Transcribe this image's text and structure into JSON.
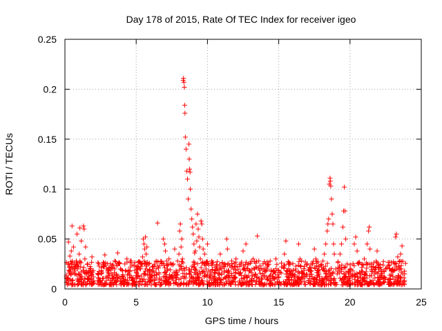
{
  "chart_data": {
    "type": "scatter",
    "title": "Day 178 of 2015, Rate Of TEC Index for receiver igeo",
    "xlabel": "GPS time / hours",
    "ylabel": "ROTI / TECUs",
    "xlim": [
      0,
      25
    ],
    "ylim": [
      0,
      0.25
    ],
    "xticks": [
      0,
      5,
      10,
      15,
      20,
      25
    ],
    "xtick_labels": [
      "0",
      "5",
      "10",
      "15",
      "20",
      "25"
    ],
    "yticks": [
      0,
      0.05,
      0.1,
      0.15,
      0.2,
      0.25
    ],
    "ytick_labels": [
      "0",
      "0.05",
      "0.1",
      "0.15",
      "0.2",
      "0.25"
    ],
    "grid": true,
    "marker": "+",
    "color": "#ff0000",
    "series": [
      {
        "name": "ROTI",
        "points": [
          [
            0.1,
            0.012
          ],
          [
            0.2,
            0.025
          ],
          [
            0.25,
            0.047
          ],
          [
            0.3,
            0.018
          ],
          [
            0.35,
            0.033
          ],
          [
            0.4,
            0.008
          ],
          [
            0.45,
            0.038
          ],
          [
            0.5,
            0.063
          ],
          [
            0.55,
            0.02
          ],
          [
            0.6,
            0.042
          ],
          [
            0.7,
            0.015
          ],
          [
            0.8,
            0.028
          ],
          [
            0.85,
            0.055
          ],
          [
            0.9,
            0.01
          ],
          [
            1.0,
            0.035
          ],
          [
            1.05,
            0.061
          ],
          [
            1.1,
            0.022
          ],
          [
            1.15,
            0.048
          ],
          [
            1.2,
            0.012
          ],
          [
            1.3,
            0.063
          ],
          [
            1.35,
            0.06
          ],
          [
            1.4,
            0.03
          ],
          [
            1.45,
            0.042
          ],
          [
            1.5,
            0.015
          ],
          [
            1.6,
            0.025
          ],
          [
            1.7,
            0.01
          ],
          [
            1.8,
            0.02
          ],
          [
            1.9,
            0.032
          ],
          [
            2.0,
            0.012
          ],
          [
            2.3,
            0.015
          ],
          [
            2.5,
            0.008
          ],
          [
            2.7,
            0.022
          ],
          [
            2.8,
            0.034
          ],
          [
            2.9,
            0.012
          ],
          [
            3.0,
            0.018
          ],
          [
            3.2,
            0.025
          ],
          [
            3.3,
            0.01
          ],
          [
            3.5,
            0.028
          ],
          [
            3.6,
            0.015
          ],
          [
            3.7,
            0.036
          ],
          [
            3.8,
            0.012
          ],
          [
            3.9,
            0.02
          ],
          [
            4.1,
            0.01
          ],
          [
            4.2,
            0.025
          ],
          [
            4.35,
            0.03
          ],
          [
            4.5,
            0.015
          ],
          [
            4.6,
            0.028
          ],
          [
            4.8,
            0.008
          ],
          [
            5.0,
            0.022
          ],
          [
            5.1,
            0.012
          ],
          [
            5.3,
            0.02
          ],
          [
            5.45,
            0.032
          ],
          [
            5.5,
            0.05
          ],
          [
            5.55,
            0.045
          ],
          [
            5.6,
            0.04
          ],
          [
            5.65,
            0.052
          ],
          [
            5.7,
            0.035
          ],
          [
            5.75,
            0.042
          ],
          [
            5.8,
            0.018
          ],
          [
            5.9,
            0.025
          ],
          [
            6.0,
            0.012
          ],
          [
            6.2,
            0.018
          ],
          [
            6.4,
            0.028
          ],
          [
            6.5,
            0.066
          ],
          [
            6.6,
            0.015
          ],
          [
            6.8,
            0.025
          ],
          [
            6.9,
            0.05
          ],
          [
            7.0,
            0.045
          ],
          [
            7.05,
            0.038
          ],
          [
            7.2,
            0.02
          ],
          [
            7.3,
            0.03
          ],
          [
            7.4,
            0.012
          ],
          [
            7.6,
            0.025
          ],
          [
            7.7,
            0.04
          ],
          [
            7.8,
            0.018
          ],
          [
            7.9,
            0.028
          ],
          [
            8.0,
            0.035
          ],
          [
            8.05,
            0.058
          ],
          [
            8.1,
            0.065
          ],
          [
            8.15,
            0.042
          ],
          [
            8.2,
            0.05
          ],
          [
            8.25,
            0.03
          ],
          [
            8.3,
            0.209
          ],
          [
            8.32,
            0.211
          ],
          [
            8.35,
            0.207
          ],
          [
            8.38,
            0.202
          ],
          [
            8.4,
            0.184
          ],
          [
            8.42,
            0.176
          ],
          [
            8.45,
            0.152
          ],
          [
            8.5,
            0.14
          ],
          [
            8.55,
            0.118
          ],
          [
            8.6,
            0.11
          ],
          [
            8.65,
            0.09
          ],
          [
            8.7,
            0.145
          ],
          [
            8.72,
            0.13
          ],
          [
            8.75,
            0.12
          ],
          [
            8.78,
            0.117
          ],
          [
            8.8,
            0.1
          ],
          [
            8.85,
            0.08
          ],
          [
            8.9,
            0.07
          ],
          [
            8.95,
            0.062
          ],
          [
            9.0,
            0.055
          ],
          [
            9.05,
            0.045
          ],
          [
            9.1,
            0.036
          ],
          [
            9.15,
            0.038
          ],
          [
            9.2,
            0.065
          ],
          [
            9.25,
            0.048
          ],
          [
            9.3,
            0.075
          ],
          [
            9.35,
            0.06
          ],
          [
            9.4,
            0.052
          ],
          [
            9.45,
            0.042
          ],
          [
            9.5,
            0.03
          ],
          [
            9.55,
            0.068
          ],
          [
            9.6,
            0.065
          ],
          [
            9.65,
            0.05
          ],
          [
            9.7,
            0.04
          ],
          [
            9.8,
            0.035
          ],
          [
            9.9,
            0.025
          ],
          [
            10.0,
            0.045
          ],
          [
            10.1,
            0.018
          ],
          [
            10.3,
            0.028
          ],
          [
            10.5,
            0.012
          ],
          [
            10.7,
            0.02
          ],
          [
            10.9,
            0.035
          ],
          [
            11.0,
            0.015
          ],
          [
            11.2,
            0.025
          ],
          [
            11.35,
            0.05
          ],
          [
            11.4,
            0.04
          ],
          [
            11.5,
            0.018
          ],
          [
            11.7,
            0.028
          ],
          [
            11.9,
            0.012
          ],
          [
            12.0,
            0.03
          ],
          [
            12.2,
            0.015
          ],
          [
            12.35,
            0.025
          ],
          [
            12.5,
            0.038
          ],
          [
            12.6,
            0.02
          ],
          [
            12.7,
            0.045
          ],
          [
            12.8,
            0.012
          ],
          [
            12.9,
            0.025
          ],
          [
            13.0,
            0.018
          ],
          [
            13.2,
            0.03
          ],
          [
            13.4,
            0.022
          ],
          [
            13.5,
            0.053
          ],
          [
            13.6,
            0.028
          ],
          [
            13.8,
            0.012
          ],
          [
            13.9,
            0.025
          ],
          [
            14.0,
            0.018
          ],
          [
            14.2,
            0.02
          ],
          [
            14.4,
            0.028
          ],
          [
            14.6,
            0.015
          ],
          [
            14.8,
            0.03
          ],
          [
            15.0,
            0.012
          ],
          [
            15.2,
            0.022
          ],
          [
            15.4,
            0.035
          ],
          [
            15.5,
            0.048
          ],
          [
            15.6,
            0.018
          ],
          [
            15.8,
            0.025
          ],
          [
            16.0,
            0.015
          ],
          [
            16.2,
            0.02
          ],
          [
            16.4,
            0.045
          ],
          [
            16.5,
            0.03
          ],
          [
            16.6,
            0.028
          ],
          [
            16.8,
            0.015
          ],
          [
            17.0,
            0.025
          ],
          [
            17.2,
            0.018
          ],
          [
            17.4,
            0.01
          ],
          [
            17.5,
            0.04
          ],
          [
            17.6,
            0.03
          ],
          [
            17.8,
            0.015
          ],
          [
            18.0,
            0.022
          ],
          [
            18.1,
            0.028
          ],
          [
            18.2,
            0.035
          ],
          [
            18.3,
            0.045
          ],
          [
            18.4,
            0.058
          ],
          [
            18.45,
            0.065
          ],
          [
            18.5,
            0.07
          ],
          [
            18.55,
            0.105
          ],
          [
            18.6,
            0.111
          ],
          [
            18.62,
            0.108
          ],
          [
            18.65,
            0.103
          ],
          [
            18.7,
            0.09
          ],
          [
            18.75,
            0.075
          ],
          [
            18.8,
            0.065
          ],
          [
            18.85,
            0.045
          ],
          [
            18.9,
            0.035
          ],
          [
            19.0,
            0.02
          ],
          [
            19.1,
            0.015
          ],
          [
            19.3,
            0.035
          ],
          [
            19.4,
            0.045
          ],
          [
            19.5,
            0.062
          ],
          [
            19.55,
            0.078
          ],
          [
            19.6,
            0.102
          ],
          [
            19.65,
            0.078
          ],
          [
            19.7,
            0.05
          ],
          [
            19.8,
            0.025
          ],
          [
            19.9,
            0.015
          ],
          [
            20.0,
            0.02
          ],
          [
            20.2,
            0.018
          ],
          [
            20.3,
            0.045
          ],
          [
            20.4,
            0.052
          ],
          [
            20.5,
            0.038
          ],
          [
            20.6,
            0.025
          ],
          [
            20.8,
            0.018
          ],
          [
            21.0,
            0.03
          ],
          [
            21.2,
            0.045
          ],
          [
            21.3,
            0.058
          ],
          [
            21.35,
            0.062
          ],
          [
            21.4,
            0.04
          ],
          [
            21.5,
            0.025
          ],
          [
            21.7,
            0.015
          ],
          [
            21.9,
            0.038
          ],
          [
            22.0,
            0.025
          ],
          [
            22.2,
            0.018
          ],
          [
            22.4,
            0.012
          ],
          [
            22.6,
            0.022
          ],
          [
            22.8,
            0.01
          ],
          [
            23.0,
            0.018
          ],
          [
            23.1,
            0.025
          ],
          [
            23.2,
            0.052
          ],
          [
            23.25,
            0.055
          ],
          [
            23.3,
            0.02
          ],
          [
            23.35,
            0.032
          ],
          [
            23.4,
            0.012
          ],
          [
            23.5,
            0.028
          ],
          [
            23.55,
            0.035
          ],
          [
            23.6,
            0.02
          ],
          [
            23.65,
            0.043
          ],
          [
            23.7,
            0.015
          ]
        ]
      }
    ]
  }
}
